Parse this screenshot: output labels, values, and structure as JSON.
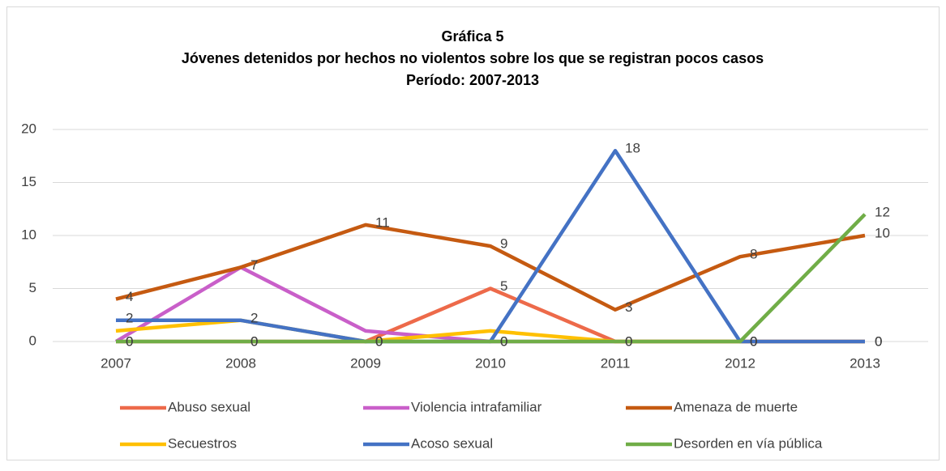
{
  "chart_data": {
    "type": "line",
    "title": [
      "Gráfica 5",
      "Jóvenes detenidos por hechos no violentos sobre los que se registran pocos casos",
      "Período: 2007-2013"
    ],
    "categories": [
      "2007",
      "2008",
      "2009",
      "2010",
      "2011",
      "2012",
      "2013"
    ],
    "series": [
      {
        "name": "Abuso  sexual",
        "color": "#ed6a4a",
        "values": [
          0,
          0,
          0,
          5,
          0,
          0,
          0
        ],
        "data_labels": true
      },
      {
        "name": "Violencia intrafamiliar",
        "color": "#c95fc9",
        "values": [
          0,
          7,
          1,
          0,
          0,
          0,
          0
        ],
        "data_labels": false
      },
      {
        "name": "Amenaza de muerte",
        "color": "#c55a11",
        "values": [
          4,
          7,
          11,
          9,
          3,
          8,
          10
        ],
        "data_labels": true
      },
      {
        "name": "Secuestros",
        "color": "#ffc000",
        "values": [
          1,
          2,
          0,
          1,
          0,
          0,
          0
        ],
        "data_labels": false
      },
      {
        "name": "Acoso sexual",
        "color": "#4472c4",
        "values": [
          2,
          2,
          0,
          0,
          18,
          0,
          0
        ],
        "data_labels": true
      },
      {
        "name": "Desorden en vía pública",
        "color": "#70ad47",
        "values": [
          0,
          0,
          0,
          0,
          0,
          0,
          12
        ],
        "data_labels": true
      }
    ],
    "ylim": [
      0,
      20
    ],
    "yticks": [
      0,
      5,
      10,
      15,
      20
    ],
    "grid": true,
    "legend": "bottom"
  }
}
